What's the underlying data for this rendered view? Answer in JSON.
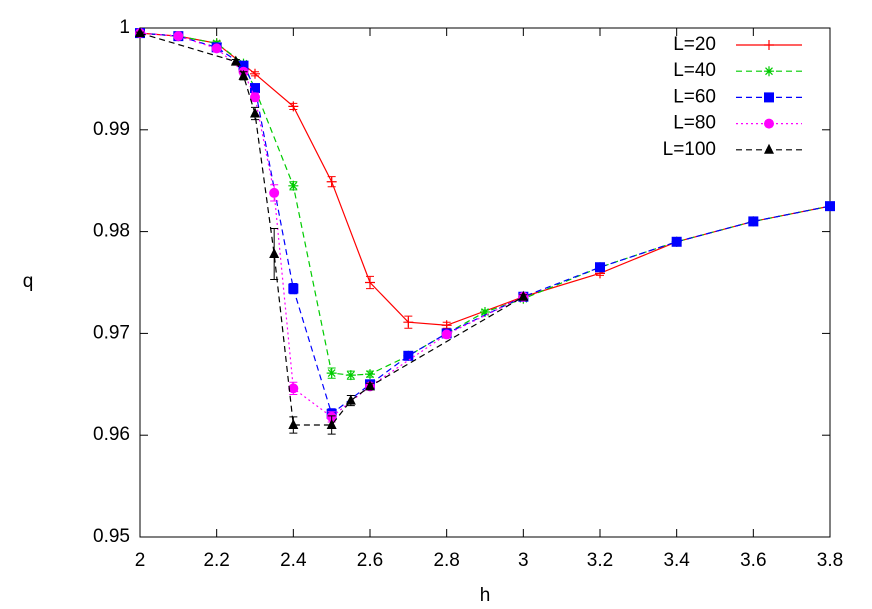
{
  "chart_data": {
    "type": "line",
    "xlabel": "h",
    "ylabel": "q",
    "xlim": [
      2,
      3.8
    ],
    "ylim": [
      0.95,
      1
    ],
    "xticks": [
      2,
      2.2,
      2.4,
      2.6,
      2.8,
      3,
      3.2,
      3.4,
      3.6,
      3.8
    ],
    "yticks": [
      0.95,
      0.96,
      0.97,
      0.98,
      0.99,
      1
    ],
    "legend": "top-right",
    "series": [
      {
        "name": "L=20",
        "color": "#ff0000",
        "marker": "plus",
        "dash": "solid",
        "x": [
          2,
          2.1,
          2.2,
          2.3,
          2.4,
          2.5,
          2.6,
          2.7,
          2.8,
          3,
          3.2,
          3.4,
          3.6,
          3.8
        ],
        "values": [
          0.9995,
          0.9992,
          0.9985,
          0.9955,
          0.9923,
          0.9849,
          0.975,
          0.9711,
          0.9708,
          0.9736,
          0.9759,
          0.979,
          0.981,
          0.9825
        ],
        "errors": [
          0.0001,
          0.0001,
          0.0002,
          0.0002,
          0.0003,
          0.0005,
          0.0006,
          0.0006,
          0.0003,
          0.0002,
          0.0002,
          0.0002,
          0.0002,
          0.0002
        ]
      },
      {
        "name": "L=40",
        "color": "#00cc00",
        "marker": "star",
        "dash": "dashed",
        "x": [
          2,
          2.1,
          2.2,
          2.27,
          2.3,
          2.4,
          2.5,
          2.55,
          2.6,
          2.7,
          2.8,
          2.9,
          3,
          3.2,
          3.4,
          3.6,
          3.8
        ],
        "values": [
          0.9995,
          0.9992,
          0.9985,
          0.9965,
          0.994,
          0.9845,
          0.9661,
          0.9659,
          0.966,
          0.9678,
          0.97,
          0.9721,
          0.9734,
          0.9765,
          0.979,
          0.981,
          0.9825
        ],
        "errors": [
          0.0001,
          0.0001,
          0.0002,
          0.0002,
          0.0003,
          0.0004,
          0.0005,
          0.0004,
          0.0003,
          0.0002,
          0.0002,
          0.0002,
          0.0002,
          0.0002,
          0.0002,
          0.0002,
          0.0002
        ]
      },
      {
        "name": "L=60",
        "color": "#0000ff",
        "marker": "square",
        "dash": "dashed",
        "x": [
          2,
          2.1,
          2.2,
          2.27,
          2.3,
          2.4,
          2.5,
          2.6,
          2.7,
          2.8,
          3,
          3.2,
          3.4,
          3.6,
          3.8
        ],
        "values": [
          0.9995,
          0.9992,
          0.9981,
          0.9963,
          0.9941,
          0.9744,
          0.9621,
          0.965,
          0.9678,
          0.97,
          0.9736,
          0.9765,
          0.979,
          0.981,
          0.9825
        ],
        "errors": [
          0.0001,
          0.0001,
          0.0002,
          0.0002,
          0.0003,
          0.0005,
          0.0005,
          0.0003,
          0.0002,
          0.0002,
          0.0002,
          0.0002,
          0.0002,
          0.0002,
          0.0002
        ]
      },
      {
        "name": "L=80",
        "color": "#ff00ff",
        "marker": "circle",
        "dash": "dotted",
        "x": [
          2,
          2.1,
          2.2,
          2.27,
          2.3,
          2.35,
          2.4,
          2.5,
          2.6,
          2.8,
          3
        ],
        "values": [
          0.9995,
          0.9992,
          0.998,
          0.9957,
          0.9932,
          0.9838,
          0.9646,
          0.9618,
          0.9648,
          0.9699,
          0.9736
        ],
        "errors": [
          0.0001,
          0.0001,
          0.0002,
          0.0003,
          0.0004,
          0.0008,
          0.0006,
          0.0005,
          0.0003,
          0.0002,
          0.0002
        ]
      },
      {
        "name": "L=100",
        "color": "#000000",
        "marker": "triangle",
        "dash": "dashed",
        "x": [
          2,
          2.25,
          2.27,
          2.3,
          2.35,
          2.4,
          2.5,
          2.55,
          2.6,
          3
        ],
        "values": [
          0.9995,
          0.9967,
          0.9953,
          0.9916,
          0.9778,
          0.961,
          0.961,
          0.9634,
          0.9648,
          0.9736
        ],
        "errors": [
          0.0001,
          0.0002,
          0.0004,
          0.0006,
          0.0025,
          0.0008,
          0.0009,
          0.0005,
          0.0003,
          0.0002
        ]
      }
    ]
  }
}
